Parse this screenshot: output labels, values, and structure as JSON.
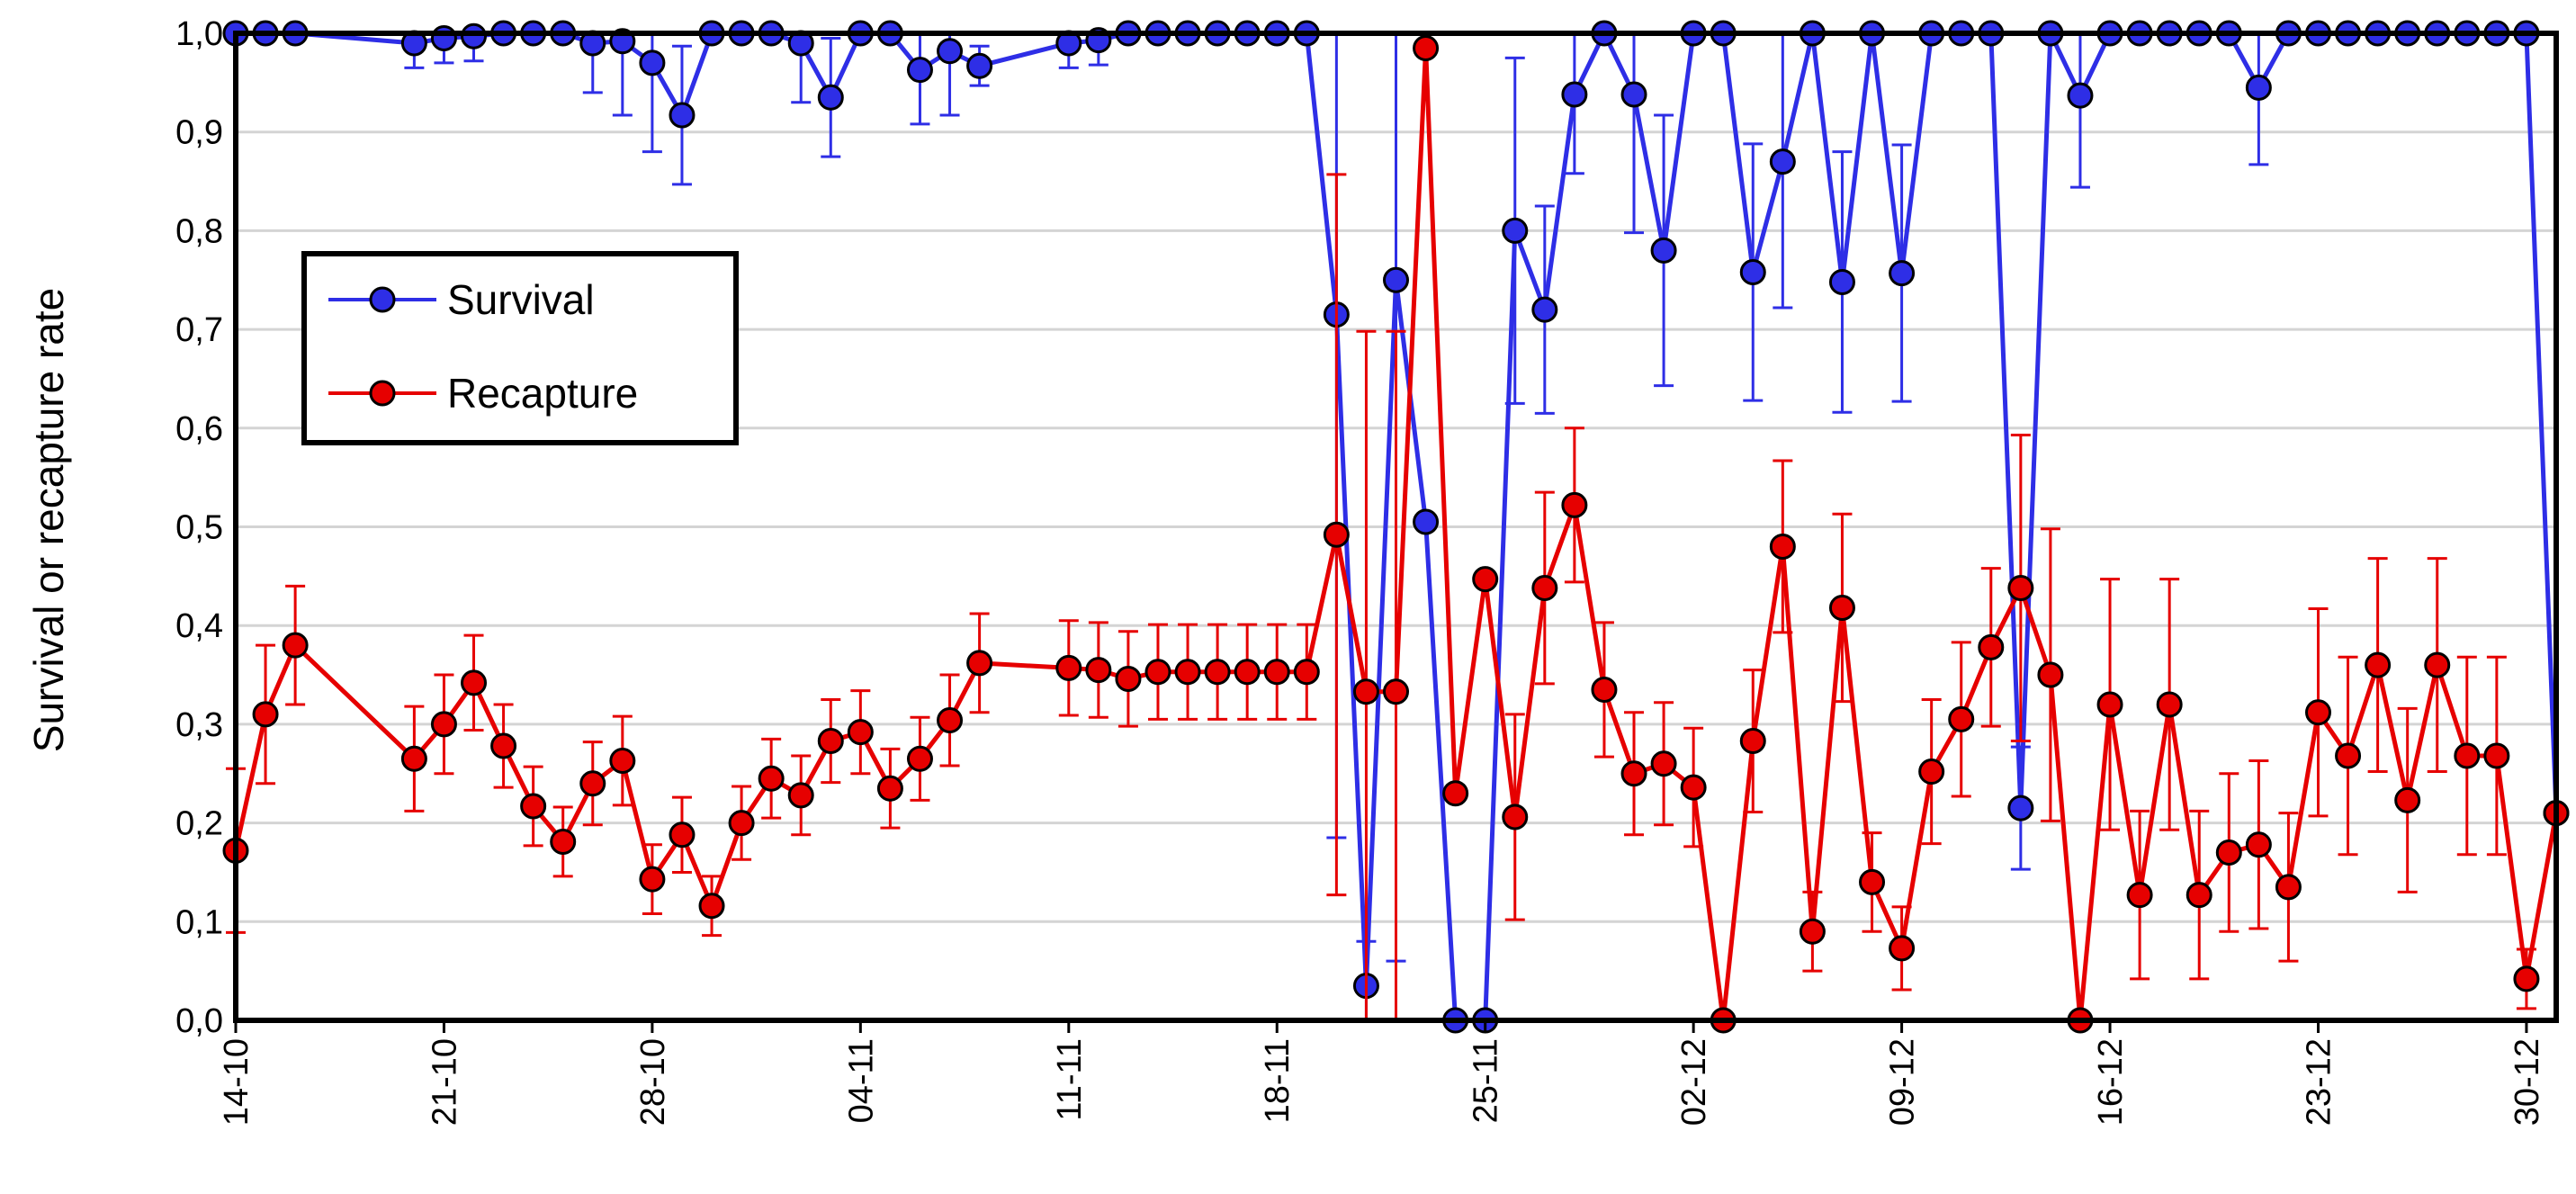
{
  "chart_data": {
    "type": "line",
    "title": "",
    "xlabel": "",
    "ylabel": "Survival or recapture rate",
    "ylim": [
      0,
      1
    ],
    "yticks": [
      "0,0",
      "0,1",
      "0,2",
      "0,3",
      "0,4",
      "0,5",
      "0,6",
      "0,7",
      "0,8",
      "0,9",
      "1,0"
    ],
    "xticks": [
      {
        "label": "14-10",
        "day": 0
      },
      {
        "label": "21-10",
        "day": 7
      },
      {
        "label": "28-10",
        "day": 14
      },
      {
        "label": "04-11",
        "day": 21
      },
      {
        "label": "11-11",
        "day": 28
      },
      {
        "label": "18-11",
        "day": 35
      },
      {
        "label": "25-11",
        "day": 42
      },
      {
        "label": "02-12",
        "day": 49
      },
      {
        "label": "09-12",
        "day": 56
      },
      {
        "label": "16-12",
        "day": 63
      },
      {
        "label": "23-12",
        "day": 70
      },
      {
        "label": "30-12",
        "day": 77
      }
    ],
    "xlim": [
      0,
      78
    ],
    "grid": "horizontal",
    "legend_position": "upper-left",
    "series": [
      {
        "name": "Survival",
        "color": "#2E2EE6",
        "points": [
          {
            "day": 0,
            "y": 1.0
          },
          {
            "day": 1,
            "y": 1.0
          },
          {
            "day": 2,
            "y": 1.0
          },
          {
            "day": 6,
            "y": 0.99,
            "err": 0.025
          },
          {
            "day": 7,
            "y": 0.995,
            "err": 0.025
          },
          {
            "day": 8,
            "y": 0.997,
            "err": 0.025
          },
          {
            "day": 9,
            "y": 1.0
          },
          {
            "day": 10,
            "y": 1.0
          },
          {
            "day": 11,
            "y": 1.0
          },
          {
            "day": 12,
            "y": 0.99,
            "err": 0.05
          },
          {
            "day": 13,
            "y": 0.992,
            "err": 0.075
          },
          {
            "day": 14,
            "y": 0.97,
            "err": 0.09
          },
          {
            "day": 15,
            "y": 0.917,
            "err": 0.07
          },
          {
            "day": 16,
            "y": 1.0
          },
          {
            "day": 17,
            "y": 1.0
          },
          {
            "day": 18,
            "y": 1.0
          },
          {
            "day": 19,
            "y": 0.99,
            "err": 0.06
          },
          {
            "day": 20,
            "y": 0.935,
            "err": 0.06
          },
          {
            "day": 21,
            "y": 1.0
          },
          {
            "day": 22,
            "y": 1.0
          },
          {
            "day": 23,
            "y": 0.963,
            "err": 0.055
          },
          {
            "day": 24,
            "y": 0.982,
            "err": 0.065
          },
          {
            "day": 25,
            "y": 0.967,
            "err": 0.02
          },
          {
            "day": 28,
            "y": 0.99,
            "err": 0.025
          },
          {
            "day": 29,
            "y": 0.993,
            "err": 0.025
          },
          {
            "day": 30,
            "y": 1.0
          },
          {
            "day": 31,
            "y": 1.0
          },
          {
            "day": 32,
            "y": 1.0
          },
          {
            "day": 33,
            "y": 1.0
          },
          {
            "day": 34,
            "y": 1.0
          },
          {
            "day": 35,
            "y": 1.0
          },
          {
            "day": 36,
            "y": 1.0
          },
          {
            "day": 37,
            "y": 0.715,
            "err": 0.53
          },
          {
            "day": 38,
            "y": 0.035,
            "err": 0.045
          },
          {
            "day": 39,
            "y": 0.75,
            "err": 0.69
          },
          {
            "day": 40,
            "y": 0.505
          },
          {
            "day": 41,
            "y": 0.0
          },
          {
            "day": 42,
            "y": 0.0
          },
          {
            "day": 43,
            "y": 0.8,
            "err": 0.175
          },
          {
            "day": 44,
            "y": 0.72,
            "err": 0.105
          },
          {
            "day": 45,
            "y": 0.938,
            "err": 0.08
          },
          {
            "day": 46,
            "y": 1.0
          },
          {
            "day": 47,
            "y": 0.938,
            "err": 0.14
          },
          {
            "day": 48,
            "y": 0.78,
            "err": 0.137
          },
          {
            "day": 49,
            "y": 1.0
          },
          {
            "day": 50,
            "y": 1.0
          },
          {
            "day": 51,
            "y": 0.758,
            "err": 0.13
          },
          {
            "day": 52,
            "y": 0.87,
            "err": 0.148
          },
          {
            "day": 53,
            "y": 1.0
          },
          {
            "day": 54,
            "y": 0.748,
            "err": 0.132
          },
          {
            "day": 55,
            "y": 1.0
          },
          {
            "day": 56,
            "y": 0.757,
            "err": 0.13
          },
          {
            "day": 57,
            "y": 1.0
          },
          {
            "day": 58,
            "y": 1.0
          },
          {
            "day": 59,
            "y": 1.0
          },
          {
            "day": 60,
            "y": 0.215,
            "err": 0.062
          },
          {
            "day": 61,
            "y": 1.0
          },
          {
            "day": 62,
            "y": 0.937,
            "err": 0.093
          },
          {
            "day": 63,
            "y": 1.0
          },
          {
            "day": 64,
            "y": 1.0
          },
          {
            "day": 65,
            "y": 1.0
          },
          {
            "day": 66,
            "y": 1.0
          },
          {
            "day": 67,
            "y": 1.0
          },
          {
            "day": 68,
            "y": 0.945,
            "err": 0.078
          },
          {
            "day": 69,
            "y": 1.0
          },
          {
            "day": 70,
            "y": 1.0
          },
          {
            "day": 71,
            "y": 1.0
          },
          {
            "day": 72,
            "y": 1.0
          },
          {
            "day": 73,
            "y": 1.0
          },
          {
            "day": 74,
            "y": 1.0
          },
          {
            "day": 75,
            "y": 1.0
          },
          {
            "day": 76,
            "y": 1.0
          },
          {
            "day": 77,
            "y": 1.0
          },
          {
            "day": 78,
            "y": 0.21
          }
        ]
      },
      {
        "name": "Recapture",
        "color": "#E60000",
        "points": [
          {
            "day": 0,
            "y": 0.172,
            "err": 0.083
          },
          {
            "day": 1,
            "y": 0.31,
            "err": 0.07
          },
          {
            "day": 2,
            "y": 0.38,
            "err": 0.06
          },
          {
            "day": 6,
            "y": 0.265,
            "err": 0.053
          },
          {
            "day": 7,
            "y": 0.3,
            "err": 0.05
          },
          {
            "day": 8,
            "y": 0.342,
            "err": 0.048
          },
          {
            "day": 9,
            "y": 0.278,
            "err": 0.042
          },
          {
            "day": 10,
            "y": 0.217,
            "err": 0.04
          },
          {
            "day": 11,
            "y": 0.181,
            "err": 0.035
          },
          {
            "day": 12,
            "y": 0.24,
            "err": 0.042
          },
          {
            "day": 13,
            "y": 0.263,
            "err": 0.045
          },
          {
            "day": 14,
            "y": 0.143,
            "err": 0.035
          },
          {
            "day": 15,
            "y": 0.188,
            "err": 0.038
          },
          {
            "day": 16,
            "y": 0.116,
            "err": 0.03
          },
          {
            "day": 17,
            "y": 0.2,
            "err": 0.037
          },
          {
            "day": 18,
            "y": 0.245,
            "err": 0.04
          },
          {
            "day": 19,
            "y": 0.228,
            "err": 0.04
          },
          {
            "day": 20,
            "y": 0.283,
            "err": 0.042
          },
          {
            "day": 21,
            "y": 0.292,
            "err": 0.042
          },
          {
            "day": 22,
            "y": 0.235,
            "err": 0.04
          },
          {
            "day": 23,
            "y": 0.265,
            "err": 0.042
          },
          {
            "day": 24,
            "y": 0.304,
            "err": 0.046
          },
          {
            "day": 25,
            "y": 0.362,
            "err": 0.05
          },
          {
            "day": 28,
            "y": 0.357,
            "err": 0.048
          },
          {
            "day": 29,
            "y": 0.355,
            "err": 0.048
          },
          {
            "day": 30,
            "y": 0.346,
            "err": 0.048
          },
          {
            "day": 31,
            "y": 0.353,
            "err": 0.048
          },
          {
            "day": 32,
            "y": 0.353,
            "err": 0.048
          },
          {
            "day": 33,
            "y": 0.353,
            "err": 0.048
          },
          {
            "day": 34,
            "y": 0.353,
            "err": 0.048
          },
          {
            "day": 35,
            "y": 0.353,
            "err": 0.048
          },
          {
            "day": 36,
            "y": 0.353,
            "err": 0.048
          },
          {
            "day": 37,
            "y": 0.492,
            "err": 0.365
          },
          {
            "day": 38,
            "y": 0.333,
            "err": 0.365
          },
          {
            "day": 39,
            "y": 0.333,
            "err": 0.365
          },
          {
            "day": 40,
            "y": 0.985
          },
          {
            "day": 41,
            "y": 0.23
          },
          {
            "day": 42,
            "y": 0.447
          },
          {
            "day": 43,
            "y": 0.206,
            "err": 0.104
          },
          {
            "day": 44,
            "y": 0.438,
            "err": 0.097
          },
          {
            "day": 45,
            "y": 0.522,
            "err": 0.078
          },
          {
            "day": 46,
            "y": 0.335,
            "err": 0.068
          },
          {
            "day": 47,
            "y": 0.25,
            "err": 0.062
          },
          {
            "day": 48,
            "y": 0.26,
            "err": 0.062
          },
          {
            "day": 49,
            "y": 0.236,
            "err": 0.06
          },
          {
            "day": 50,
            "y": 0.0
          },
          {
            "day": 51,
            "y": 0.283,
            "err": 0.072
          },
          {
            "day": 52,
            "y": 0.48,
            "err": 0.087
          },
          {
            "day": 53,
            "y": 0.09,
            "err": 0.04
          },
          {
            "day": 54,
            "y": 0.418,
            "err": 0.095
          },
          {
            "day": 55,
            "y": 0.14,
            "err": 0.05
          },
          {
            "day": 56,
            "y": 0.073,
            "err": 0.042
          },
          {
            "day": 57,
            "y": 0.252,
            "err": 0.073
          },
          {
            "day": 58,
            "y": 0.305,
            "err": 0.078
          },
          {
            "day": 59,
            "y": 0.378,
            "err": 0.08
          },
          {
            "day": 60,
            "y": 0.438,
            "err": 0.155
          },
          {
            "day": 61,
            "y": 0.35,
            "err": 0.148
          },
          {
            "day": 62,
            "y": 0.0
          },
          {
            "day": 63,
            "y": 0.32,
            "err": 0.127
          },
          {
            "day": 64,
            "y": 0.127,
            "err": 0.085
          },
          {
            "day": 65,
            "y": 0.32,
            "err": 0.127
          },
          {
            "day": 66,
            "y": 0.127,
            "err": 0.085
          },
          {
            "day": 67,
            "y": 0.17,
            "err": 0.08
          },
          {
            "day": 68,
            "y": 0.178,
            "err": 0.085
          },
          {
            "day": 69,
            "y": 0.135,
            "err": 0.075
          },
          {
            "day": 70,
            "y": 0.312,
            "err": 0.105
          },
          {
            "day": 71,
            "y": 0.268,
            "err": 0.1
          },
          {
            "day": 72,
            "y": 0.36,
            "err": 0.108
          },
          {
            "day": 73,
            "y": 0.223,
            "err": 0.093
          },
          {
            "day": 74,
            "y": 0.36,
            "err": 0.108
          },
          {
            "day": 75,
            "y": 0.268,
            "err": 0.1
          },
          {
            "day": 76,
            "y": 0.268,
            "err": 0.1
          },
          {
            "day": 77,
            "y": 0.042,
            "err": 0.03
          },
          {
            "day": 78,
            "y": 0.21
          }
        ]
      }
    ]
  }
}
